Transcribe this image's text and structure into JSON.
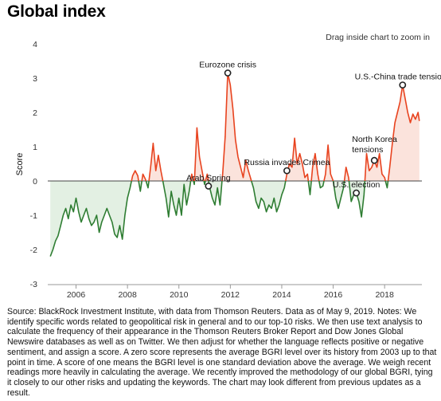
{
  "title": "Global index",
  "hint": "Drag inside chart to zoom in",
  "source": "Source: BlackRock Investment Institute, with data from Thomson Reuters. Data as of May 9, 2019. Notes: We identify specific words related to geopolitical risk in general and to our top-10 risks. We then use text analysis to calculate the frequency of their appearance in the Thomson Reuters Broker Report and Dow Jones Global Newswire databases as well as on Twitter. We then adjust for whether the language reflects positive or negative sentiment, and assign a score. A zero score represents the average BGRI level over its history from 2003 up to that point in time. A score of one means the BGRI level is one standard deviation above the average. We weigh recent readings more heavily in calculating the average. We recently improved the methodology of our global BGRI, tying it closely to our other risks and updating the keywords. The chart may look different from previous updates as a result.",
  "colors": {
    "positive": "#e8431f",
    "negative": "#2e7d32",
    "positive_fill": "#fbe3dc",
    "negative_fill": "#e3f0e3"
  },
  "chart_data": {
    "type": "area",
    "title": "Global index",
    "xlabel": "",
    "ylabel": "Score",
    "ylim": [
      -3,
      4
    ],
    "xlim": [
      2004.9,
      2019.45
    ],
    "y_ticks": [
      -3,
      -2,
      -1,
      0,
      1,
      2,
      3,
      4
    ],
    "x_ticks": [
      2006,
      2008,
      2010,
      2012,
      2014,
      2016,
      2018
    ],
    "grid": false,
    "series": [
      {
        "values": [
          [
            2005.0,
            -2.2
          ],
          [
            2005.1,
            -2.0
          ],
          [
            2005.2,
            -1.75
          ],
          [
            2005.3,
            -1.6
          ],
          [
            2005.4,
            -1.3
          ],
          [
            2005.5,
            -1.0
          ],
          [
            2005.6,
            -0.8
          ],
          [
            2005.7,
            -1.1
          ],
          [
            2005.8,
            -0.7
          ],
          [
            2005.9,
            -0.9
          ],
          [
            2006.0,
            -0.5
          ],
          [
            2006.1,
            -0.9
          ],
          [
            2006.2,
            -1.2
          ],
          [
            2006.3,
            -1.0
          ],
          [
            2006.4,
            -0.8
          ],
          [
            2006.5,
            -1.1
          ],
          [
            2006.6,
            -1.3
          ],
          [
            2006.7,
            -1.2
          ],
          [
            2006.8,
            -1.0
          ],
          [
            2006.9,
            -1.5
          ],
          [
            2007.0,
            -1.2
          ],
          [
            2007.1,
            -1.0
          ],
          [
            2007.2,
            -0.8
          ],
          [
            2007.3,
            -1.0
          ],
          [
            2007.4,
            -1.2
          ],
          [
            2007.5,
            -1.55
          ],
          [
            2007.6,
            -1.65
          ],
          [
            2007.7,
            -1.3
          ],
          [
            2007.8,
            -1.7
          ],
          [
            2007.9,
            -1.0
          ],
          [
            2008.0,
            -0.5
          ],
          [
            2008.1,
            -0.2
          ],
          [
            2008.2,
            0.15
          ],
          [
            2008.3,
            0.3
          ],
          [
            2008.4,
            0.15
          ],
          [
            2008.5,
            -0.3
          ],
          [
            2008.6,
            0.2
          ],
          [
            2008.7,
            0.05
          ],
          [
            2008.8,
            -0.2
          ],
          [
            2008.9,
            0.4
          ],
          [
            2009.0,
            1.1
          ],
          [
            2009.1,
            0.3
          ],
          [
            2009.2,
            0.75
          ],
          [
            2009.3,
            0.3
          ],
          [
            2009.4,
            -0.1
          ],
          [
            2009.5,
            -0.5
          ],
          [
            2009.6,
            -1.05
          ],
          [
            2009.7,
            -0.3
          ],
          [
            2009.8,
            -0.7
          ],
          [
            2009.9,
            -1.0
          ],
          [
            2010.0,
            -0.5
          ],
          [
            2010.1,
            -1.0
          ],
          [
            2010.2,
            -0.1
          ],
          [
            2010.3,
            -0.7
          ],
          [
            2010.4,
            -0.3
          ],
          [
            2010.5,
            0.2
          ],
          [
            2010.6,
            -0.1
          ],
          [
            2010.7,
            1.55
          ],
          [
            2010.8,
            0.7
          ],
          [
            2010.9,
            0.3
          ],
          [
            2011.0,
            -0.1
          ],
          [
            2011.1,
            0.2
          ],
          [
            2011.2,
            -0.2
          ],
          [
            2011.3,
            -0.5
          ],
          [
            2011.4,
            -0.7
          ],
          [
            2011.5,
            -0.2
          ],
          [
            2011.6,
            -0.7
          ],
          [
            2011.7,
            0.2
          ],
          [
            2011.8,
            1.3
          ],
          [
            2011.9,
            3.15
          ],
          [
            2012.0,
            2.8
          ],
          [
            2012.1,
            2.1
          ],
          [
            2012.2,
            1.2
          ],
          [
            2012.3,
            0.7
          ],
          [
            2012.4,
            0.4
          ],
          [
            2012.5,
            0.1
          ],
          [
            2012.6,
            0.6
          ],
          [
            2012.7,
            0.3
          ],
          [
            2012.8,
            0.05
          ],
          [
            2012.9,
            -0.2
          ],
          [
            2013.0,
            -0.6
          ],
          [
            2013.1,
            -0.8
          ],
          [
            2013.2,
            -0.5
          ],
          [
            2013.3,
            -0.6
          ],
          [
            2013.4,
            -0.9
          ],
          [
            2013.5,
            -0.7
          ],
          [
            2013.6,
            -0.8
          ],
          [
            2013.7,
            -0.5
          ],
          [
            2013.8,
            -0.9
          ],
          [
            2013.9,
            -0.7
          ],
          [
            2014.0,
            -0.4
          ],
          [
            2014.1,
            -0.2
          ],
          [
            2014.2,
            0.2
          ],
          [
            2014.3,
            0.5
          ],
          [
            2014.4,
            0.4
          ],
          [
            2014.5,
            1.25
          ],
          [
            2014.6,
            0.5
          ],
          [
            2014.7,
            0.8
          ],
          [
            2014.8,
            0.5
          ],
          [
            2014.9,
            0.1
          ],
          [
            2015.0,
            0.2
          ],
          [
            2015.1,
            -0.4
          ],
          [
            2015.2,
            0.4
          ],
          [
            2015.3,
            0.8
          ],
          [
            2015.4,
            0.2
          ],
          [
            2015.5,
            -0.2
          ],
          [
            2015.6,
            -0.15
          ],
          [
            2015.7,
            0.2
          ],
          [
            2015.8,
            1.05
          ],
          [
            2015.9,
            0.2
          ],
          [
            2016.0,
            0.0
          ],
          [
            2016.1,
            -0.5
          ],
          [
            2016.2,
            -0.8
          ],
          [
            2016.3,
            -0.5
          ],
          [
            2016.4,
            -0.2
          ],
          [
            2016.5,
            0.4
          ],
          [
            2016.6,
            0.1
          ],
          [
            2016.7,
            -0.6
          ],
          [
            2016.8,
            -0.4
          ],
          [
            2016.9,
            -0.35
          ],
          [
            2017.0,
            -0.6
          ],
          [
            2017.1,
            -1.05
          ],
          [
            2017.2,
            -0.4
          ],
          [
            2017.3,
            0.8
          ],
          [
            2017.4,
            0.3
          ],
          [
            2017.5,
            0.4
          ],
          [
            2017.6,
            0.6
          ],
          [
            2017.7,
            0.4
          ],
          [
            2017.8,
            0.8
          ],
          [
            2017.9,
            0.2
          ],
          [
            2018.0,
            0.1
          ],
          [
            2018.1,
            -0.2
          ],
          [
            2018.2,
            0.4
          ],
          [
            2018.3,
            1.1
          ],
          [
            2018.4,
            1.7
          ],
          [
            2018.5,
            2.0
          ],
          [
            2018.6,
            2.3
          ],
          [
            2018.7,
            2.8
          ],
          [
            2018.8,
            2.4
          ],
          [
            2018.9,
            2.0
          ],
          [
            2019.0,
            1.7
          ],
          [
            2019.1,
            1.95
          ],
          [
            2019.2,
            1.8
          ],
          [
            2019.3,
            2.0
          ],
          [
            2019.35,
            1.75
          ]
        ]
      }
    ],
    "annotations": [
      {
        "label": "Eurozone crisis",
        "x": 2011.9,
        "y": 3.15,
        "anchor": "above"
      },
      {
        "label": "U.S.-China trade tensions",
        "x": 2018.7,
        "y": 2.8,
        "anchor": "above"
      },
      {
        "label": "North Korea tensions",
        "x": 2017.6,
        "y": 0.6,
        "anchor": "above-left"
      },
      {
        "label": "Russia invades Crimea",
        "x": 2014.2,
        "y": 0.3,
        "anchor": "above"
      },
      {
        "label": "Arab Spring",
        "x": 2011.15,
        "y": -0.15,
        "anchor": "above"
      },
      {
        "label": "U.S. election",
        "x": 2016.9,
        "y": -0.35,
        "anchor": "above"
      }
    ]
  }
}
